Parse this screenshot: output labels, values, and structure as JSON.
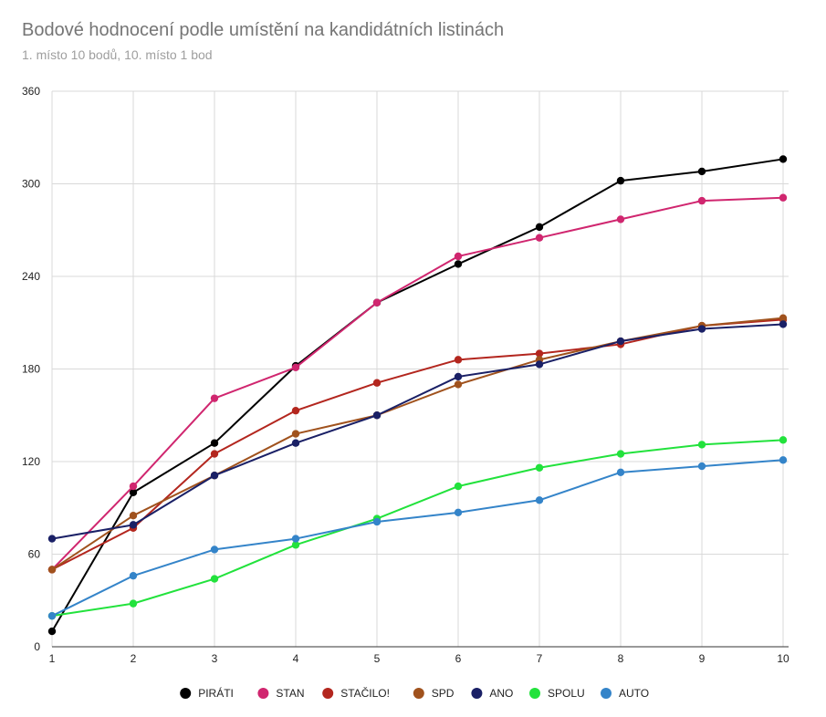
{
  "chart_data": {
    "type": "line",
    "title": "Bodové hodnocení podle umístění na kandidátních listinách",
    "subtitle": "1. místo 10 bodů, 10. místo 1 bod",
    "xlabel": "",
    "ylabel": "",
    "x": [
      1,
      2,
      3,
      4,
      5,
      6,
      7,
      8,
      9,
      10
    ],
    "ylim": [
      0,
      360
    ],
    "yticks": [
      0,
      60,
      120,
      180,
      240,
      300,
      360
    ],
    "grid": true,
    "legend_position": "bottom",
    "series": [
      {
        "name": "PIRÁTI",
        "color": "#000000",
        "values": [
          10,
          100,
          132,
          182,
          223,
          248,
          272,
          302,
          308,
          316
        ]
      },
      {
        "name": "STAN",
        "color": "#d0266f",
        "values": [
          50,
          104,
          161,
          181,
          223,
          253,
          265,
          277,
          289,
          291
        ]
      },
      {
        "name": "STAČILO!",
        "color": "#b3261e",
        "values": [
          50,
          77,
          125,
          153,
          171,
          186,
          190,
          196,
          208,
          212
        ]
      },
      {
        "name": "SPD",
        "color": "#a0521d",
        "values": [
          50,
          85,
          111,
          138,
          150,
          170,
          186,
          198,
          208,
          213
        ]
      },
      {
        "name": "ANO",
        "color": "#1a2066",
        "values": [
          70,
          79,
          111,
          132,
          150,
          175,
          183,
          198,
          206,
          209
        ]
      },
      {
        "name": "SPOLU",
        "color": "#22e23c",
        "values": [
          20,
          28,
          44,
          66,
          83,
          104,
          116,
          125,
          131,
          134
        ]
      },
      {
        "name": "AUTO",
        "color": "#3484c9",
        "values": [
          20,
          46,
          63,
          70,
          81,
          87,
          95,
          113,
          117,
          121
        ]
      }
    ]
  }
}
